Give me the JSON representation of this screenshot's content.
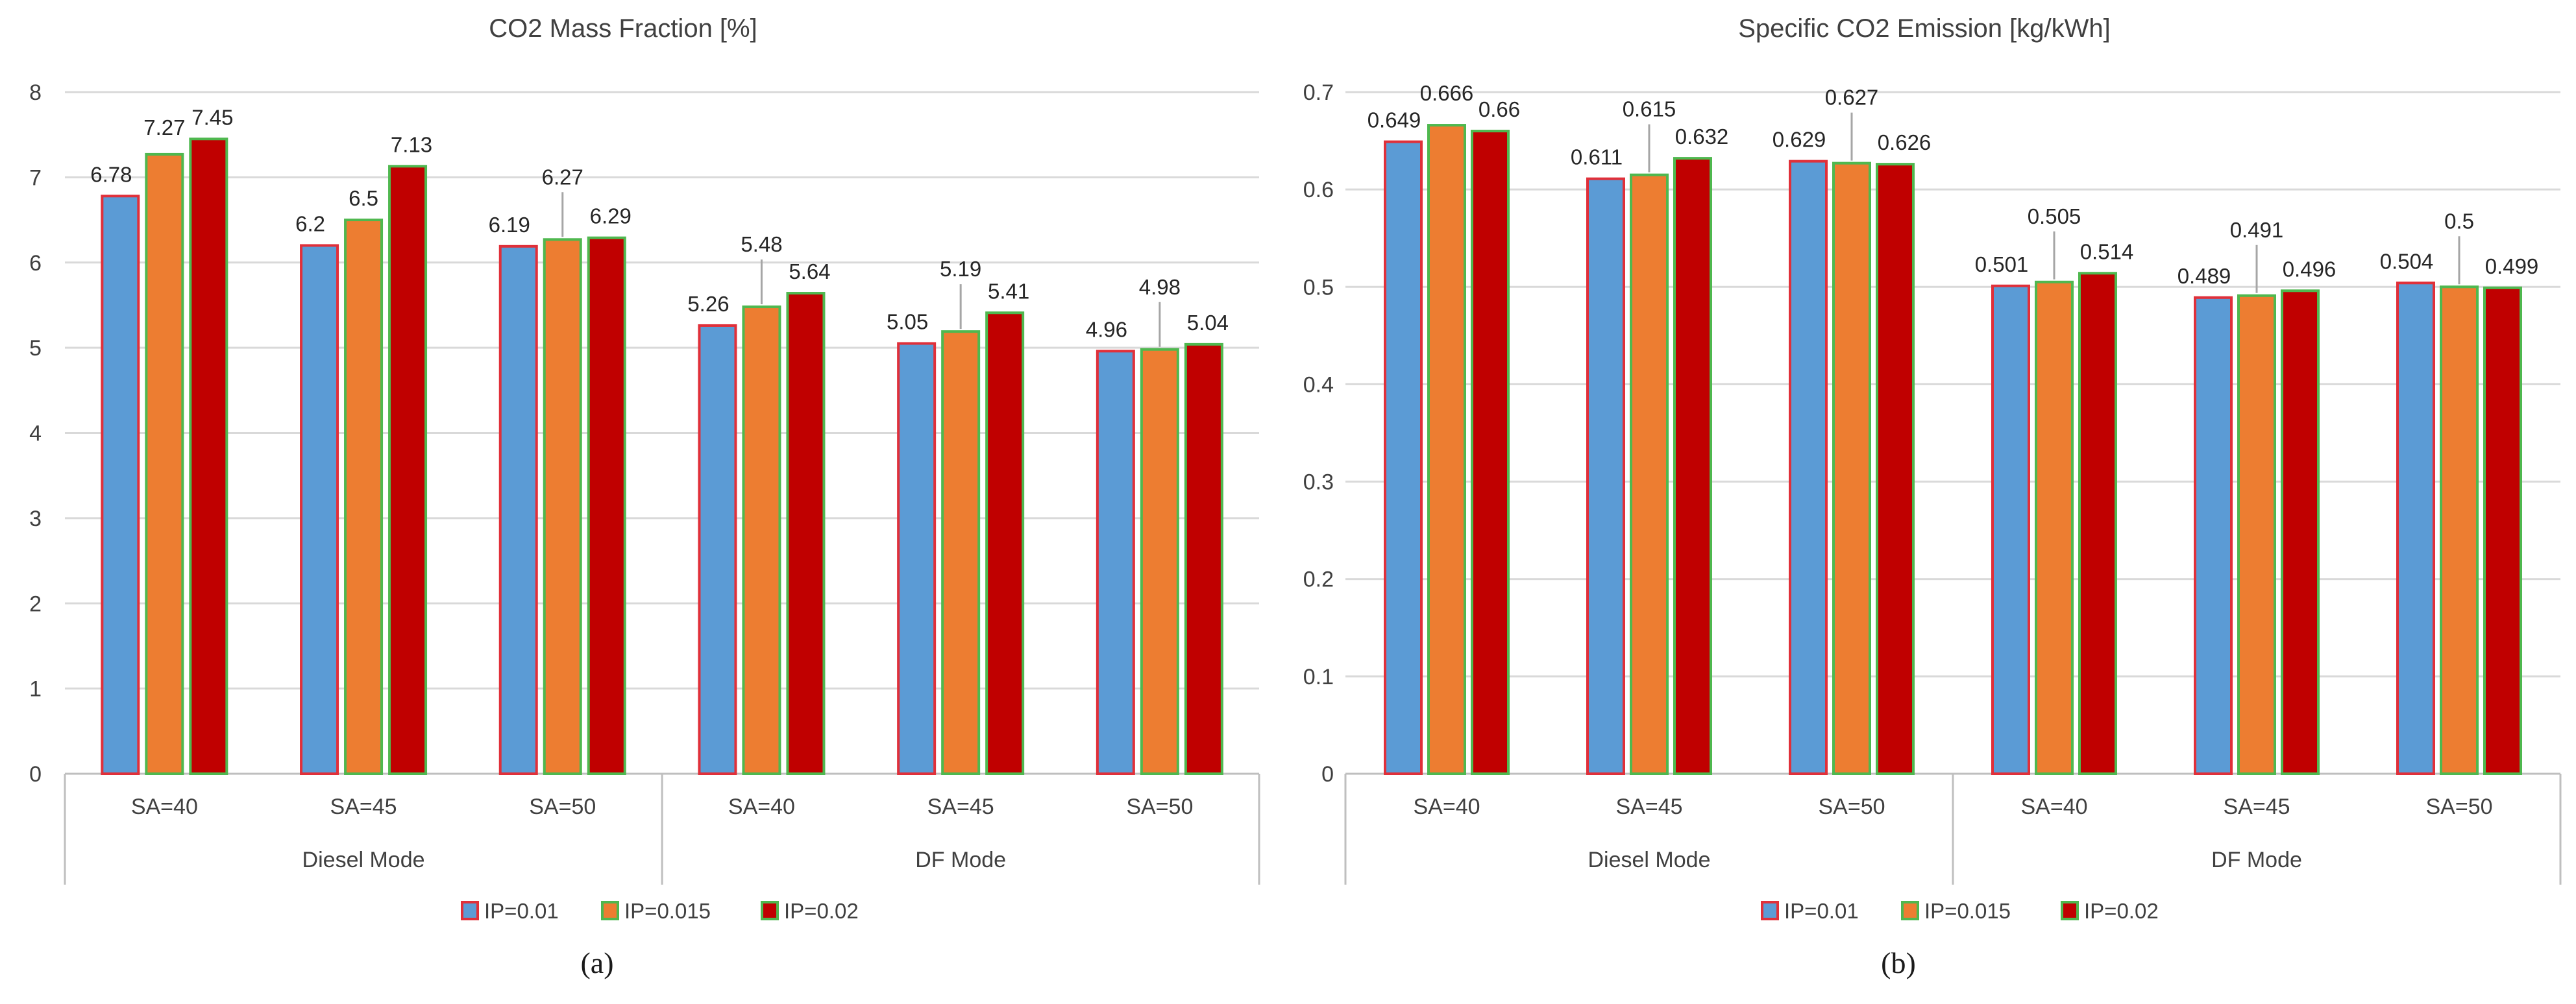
{
  "chart_data": [
    {
      "type": "bar",
      "title": "CO2 Mass Fraction [%]",
      "ylim": [
        0,
        8
      ],
      "yticks": [
        "0",
        "1",
        "2",
        "3",
        "4",
        "5",
        "6",
        "7",
        "8"
      ],
      "categories": [
        "SA=40",
        "SA=45",
        "SA=50",
        "SA=40",
        "SA=45",
        "SA=50"
      ],
      "groups": [
        "Diesel Mode",
        "DF Mode"
      ],
      "series": [
        {
          "name": "IP=0.01",
          "values": [
            6.78,
            6.2,
            6.19,
            5.26,
            5.05,
            4.96
          ],
          "labels": [
            "6.78",
            "6.2",
            "6.19",
            "5.26",
            "5.05",
            "4.96"
          ]
        },
        {
          "name": "IP=0.015",
          "values": [
            7.27,
            6.5,
            6.27,
            5.48,
            5.19,
            4.98
          ],
          "labels": [
            "7.27",
            "6.5",
            "6.27",
            "5.48",
            "5.19",
            "4.98"
          ]
        },
        {
          "name": "IP=0.02",
          "values": [
            7.45,
            7.13,
            6.29,
            5.64,
            5.41,
            5.04
          ],
          "labels": [
            "7.45",
            "7.13",
            "6.29",
            "5.64",
            "5.41",
            "5.04"
          ]
        }
      ],
      "legend_position": "bottom",
      "grid": true,
      "panel_label": "(a)"
    },
    {
      "type": "bar",
      "title": "Specific CO2 Emission [kg/kWh]",
      "ylim": [
        0,
        0.7
      ],
      "yticks": [
        "0",
        "0.1",
        "0.2",
        "0.3",
        "0.4",
        "0.5",
        "0.6",
        "0.7"
      ],
      "categories": [
        "SA=40",
        "SA=45",
        "SA=50",
        "SA=40",
        "SA=45",
        "SA=50"
      ],
      "groups": [
        "Diesel Mode",
        "DF Mode"
      ],
      "series": [
        {
          "name": "IP=0.01",
          "values": [
            0.649,
            0.611,
            0.629,
            0.501,
            0.489,
            0.504
          ],
          "labels": [
            "0.649",
            "0.611",
            "0.629",
            "0.501",
            "0.489",
            "0.504"
          ]
        },
        {
          "name": "IP=0.015",
          "values": [
            0.666,
            0.615,
            0.627,
            0.505,
            0.491,
            0.5
          ],
          "labels": [
            "0.666",
            "0.615",
            "0.627",
            "0.505",
            "0.491",
            "0.5"
          ]
        },
        {
          "name": "IP=0.02",
          "values": [
            0.66,
            0.632,
            0.626,
            0.514,
            0.496,
            0.499
          ],
          "labels": [
            "0.66",
            "0.632",
            "0.626",
            "0.514",
            "0.496",
            "0.499"
          ]
        }
      ],
      "legend_position": "bottom",
      "grid": true,
      "panel_label": "(b)"
    }
  ],
  "colors": {
    "series_fill": [
      "#5b9bd5",
      "#ed7d31",
      "#c00000"
    ],
    "series_edge": [
      "#e0303a",
      "#4fb84f",
      "#4fb84f"
    ],
    "grid": "#d9d9d9",
    "axis": "#bfbfbf",
    "leader": "#a6a6a6"
  }
}
